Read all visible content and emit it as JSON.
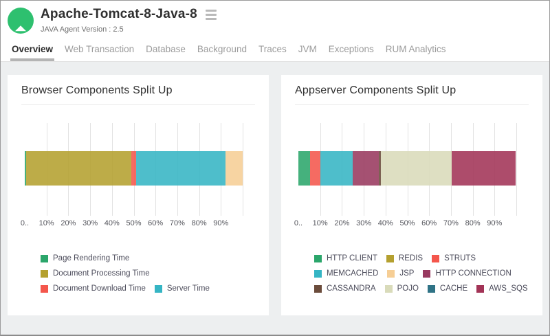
{
  "header": {
    "title": "Apache-Tomcat-8-Java-8",
    "subtitle": "JAVA Agent Version : 2.5",
    "status_icon": "up-arrow-icon",
    "status_color": "#2ec06f"
  },
  "tabs": [
    {
      "label": "Overview",
      "active": true
    },
    {
      "label": "Web Transaction",
      "active": false
    },
    {
      "label": "Database",
      "active": false
    },
    {
      "label": "Background",
      "active": false
    },
    {
      "label": "Traces",
      "active": false
    },
    {
      "label": "JVM",
      "active": false
    },
    {
      "label": "Exceptions",
      "active": false
    },
    {
      "label": "RUM Analytics",
      "active": false
    }
  ],
  "chart_data": [
    {
      "type": "bar",
      "title": "Browser Components Split Up",
      "orientation": "horizontal-stacked",
      "xlim": [
        0,
        100
      ],
      "grid": true,
      "tick_labels": [
        "0..",
        "10%",
        "20%",
        "30%",
        "40%",
        "50%",
        "60%",
        "70%",
        "80%",
        "90%"
      ],
      "series": [
        {
          "name": "Page Rendering Time",
          "value": 0.5,
          "color": "#2BA66B"
        },
        {
          "name": "Document Processing Time",
          "value": 48.5,
          "color": "#B4A02F"
        },
        {
          "name": "Document Download Time",
          "value": 2,
          "color": "#F4564C"
        },
        {
          "name": "Server Time",
          "value": 41,
          "color": "#35B5C4"
        },
        {
          "name": "",
          "value": 8,
          "color": "#F6CE95"
        }
      ],
      "legend_rows": [
        [
          "Page Rendering Time"
        ],
        [
          "Document Processing Time"
        ],
        [
          "Document Download Time",
          "Server Time"
        ]
      ]
    },
    {
      "type": "bar",
      "title": "Appserver Components Split Up",
      "orientation": "horizontal-stacked",
      "xlim": [
        0,
        100
      ],
      "grid": true,
      "tick_labels": [
        "0..",
        "10%",
        "20%",
        "30%",
        "40%",
        "50%",
        "60%",
        "70%",
        "80%",
        "90%"
      ],
      "series": [
        {
          "name": "HTTP CLIENT",
          "value": 5.5,
          "color": "#2BA66B"
        },
        {
          "name": "REDIS",
          "value": 0,
          "color": "#B4A02F"
        },
        {
          "name": "STRUTS",
          "value": 4.5,
          "color": "#F4564C"
        },
        {
          "name": "MEMCACHED",
          "value": 15,
          "color": "#35B5C4"
        },
        {
          "name": "JSP",
          "value": 0,
          "color": "#F6CE95"
        },
        {
          "name": "HTTP CONNECTION",
          "value": 12,
          "color": "#98395F"
        },
        {
          "name": "CASSANDRA",
          "value": 0.8,
          "color": "#6B4C3B"
        },
        {
          "name": "POJO",
          "value": 32.5,
          "color": "#D9DBBA"
        },
        {
          "name": "CACHE",
          "value": 0,
          "color": "#2F7386"
        },
        {
          "name": "AWS_SQS",
          "value": 29.5,
          "color": "#A23356"
        }
      ],
      "legend_rows": [
        [
          "HTTP CLIENT",
          "REDIS",
          "STRUTS"
        ],
        [
          "MEMCACHED",
          "JSP",
          "HTTP CONNECTION"
        ],
        [
          "CASSANDRA",
          "POJO",
          "CACHE",
          "AWS_SQS"
        ]
      ]
    }
  ]
}
